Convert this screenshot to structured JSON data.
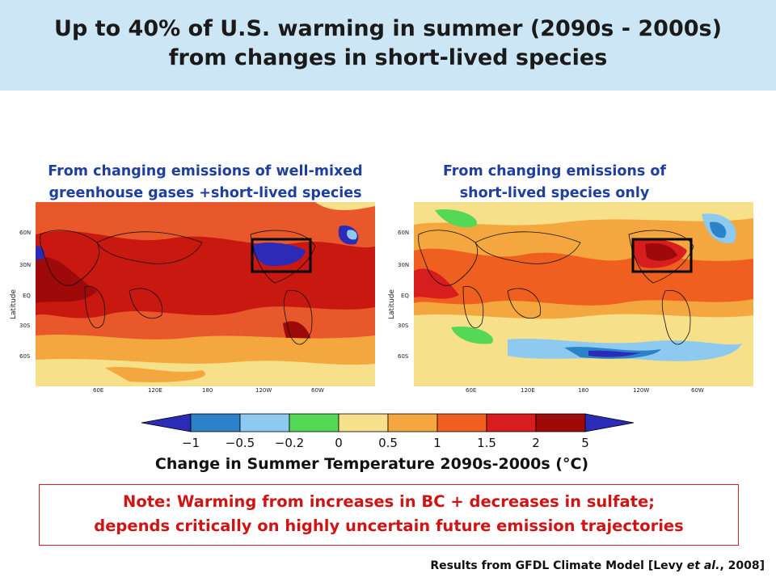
{
  "title": {
    "line1": "Up to 40% of U.S. warming in summer (2090s - 2000s)",
    "line2": "from changes in short-lived species"
  },
  "left_panel": {
    "caption_line1": "From changing emissions of well-mixed",
    "caption_line2": "greenhouse gases +short-lived species"
  },
  "right_panel": {
    "caption_line1": "From changing emissions of",
    "caption_line2": "short-lived species only"
  },
  "map_axes": {
    "ylabel": "Latitude",
    "lat_ticks": [
      "60N",
      "30N",
      "EQ",
      "30S",
      "60S"
    ],
    "lon_ticks": [
      "60E",
      "120E",
      "180",
      "120W",
      "60W"
    ]
  },
  "colorbar": {
    "labels": [
      "−1",
      "−0.5",
      "−0.2",
      "0",
      "0.5",
      "1",
      "1.5",
      "2",
      "5"
    ],
    "colors": [
      "#2b2bb8",
      "#2c82c9",
      "#8ec9f0",
      "#55d855",
      "#f7e08a",
      "#f4a73e",
      "#ef5f1f",
      "#d71d1d",
      "#9e0a0a",
      "#2b2bb8"
    ],
    "title": "Change in Summer Temperature 2090s-2000s (°C)"
  },
  "note": {
    "line1": "Note: Warming from increases in BC + decreases in sulfate;",
    "line2": "depends critically on highly uncertain future emission trajectories"
  },
  "source": {
    "prefix": "Results from GFDL Climate Model [Levy ",
    "italic": "et al.",
    "suffix": ", 2008]"
  }
}
